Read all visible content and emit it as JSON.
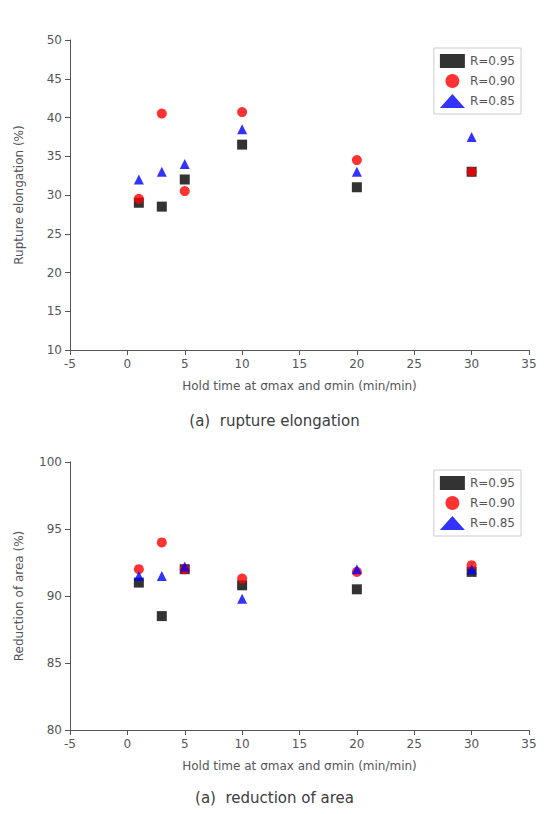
{
  "chart_data": [
    {
      "type": "scatter",
      "title": "(a)  rupture elongation",
      "xlabel": "Hold time at σmax and σmin (min/min)",
      "ylabel": "Rupture elongation (%)",
      "x": [
        1,
        3,
        5,
        10,
        20,
        30
      ],
      "series": [
        {
          "name": "R=0.95",
          "color": "#000000",
          "marker": "square",
          "values": [
            29.0,
            28.5,
            32.0,
            36.5,
            31.0,
            33.0
          ]
        },
        {
          "name": "R=0.90",
          "color": "#ff0000",
          "marker": "circle",
          "values": [
            29.5,
            40.5,
            30.5,
            40.7,
            34.5,
            33.0
          ]
        },
        {
          "name": "R=0.85",
          "color": "#0000ff",
          "marker": "triangle",
          "values": [
            32.0,
            33.0,
            34.0,
            38.5,
            33.0,
            37.5
          ]
        }
      ],
      "xlim": [
        -5,
        35
      ],
      "xticks": [
        -5,
        0,
        5,
        10,
        15,
        20,
        25,
        30,
        35
      ],
      "ylim": [
        10,
        50
      ],
      "yticks": [
        10,
        15,
        20,
        25,
        30,
        35,
        40,
        45,
        50
      ],
      "legend": "upper right",
      "grid": false
    },
    {
      "type": "scatter",
      "title": "(a)  reduction of area",
      "xlabel": "Hold time at σmax and σmin (min/min)",
      "ylabel": "Reduction of area (%)",
      "x": [
        1,
        3,
        5,
        10,
        20,
        30
      ],
      "series": [
        {
          "name": "R=0.95",
          "color": "#000000",
          "marker": "square",
          "values": [
            91.0,
            88.5,
            92.0,
            90.8,
            90.5,
            91.8
          ]
        },
        {
          "name": "R=0.90",
          "color": "#ff0000",
          "marker": "circle",
          "values": [
            92.0,
            94.0,
            92.0,
            91.3,
            91.8,
            92.3
          ]
        },
        {
          "name": "R=0.85",
          "color": "#0000ff",
          "marker": "triangle",
          "values": [
            91.5,
            91.5,
            92.2,
            89.8,
            92.0,
            92.0
          ]
        }
      ],
      "xlim": [
        -5,
        35
      ],
      "xticks": [
        -5,
        0,
        5,
        10,
        15,
        20,
        25,
        30,
        35
      ],
      "ylim": [
        80,
        100
      ],
      "yticks": [
        80,
        85,
        90,
        95,
        100
      ],
      "legend": "upper right",
      "grid": false
    }
  ]
}
